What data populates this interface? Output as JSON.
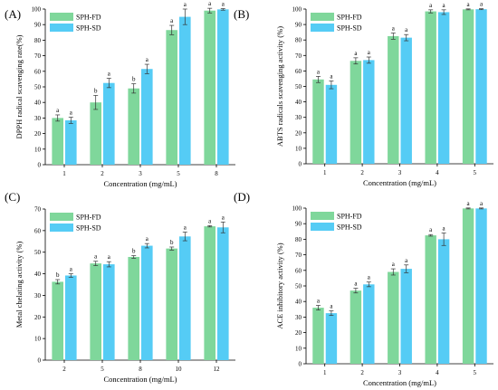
{
  "chart_data": [
    {
      "type": "bar",
      "panel_label": "(A)",
      "xlabel": "Concentration (mg/mL)",
      "ylabel": "DPPH radical scavenging rate(%)",
      "categories": [
        "1",
        "2",
        "3",
        "5",
        "8"
      ],
      "ylim": [
        0,
        100
      ],
      "yticks": [
        0,
        10,
        20,
        30,
        40,
        50,
        60,
        70,
        80,
        90,
        100
      ],
      "legend_position": "top-left",
      "series": [
        {
          "name": "SPH-FD",
          "color": "#7fd79b",
          "values": [
            30,
            40,
            49,
            86.5,
            99
          ],
          "errors": [
            2,
            4.5,
            3,
            3,
            1.5
          ],
          "labels": [
            "a",
            "b",
            "b",
            "a",
            "a"
          ]
        },
        {
          "name": "SPH-SD",
          "color": "#55ccf5",
          "values": [
            28.5,
            52.5,
            61.5,
            95,
            99.8
          ],
          "errors": [
            2,
            3,
            3,
            5,
            0.5
          ],
          "labels": [
            "a",
            "a",
            "a",
            "a",
            "a"
          ]
        }
      ]
    },
    {
      "type": "bar",
      "panel_label": "(B)",
      "xlabel": "Concentration (mg/mL)",
      "ylabel": "ABTS radicals scavenging activity (%)",
      "categories": [
        "1",
        "2",
        "3",
        "4",
        "5"
      ],
      "ylim": [
        0,
        100
      ],
      "yticks": [
        0,
        10,
        20,
        30,
        40,
        50,
        60,
        70,
        80,
        90,
        100
      ],
      "legend_position": "top-left",
      "series": [
        {
          "name": "SPH-FD",
          "color": "#7fd79b",
          "values": [
            54.5,
            66.5,
            82.5,
            98.5,
            99.8
          ],
          "errors": [
            2,
            2,
            2,
            1,
            0.3
          ],
          "labels": [
            "a",
            "a",
            "a",
            "a",
            "a"
          ]
        },
        {
          "name": "SPH-SD",
          "color": "#55ccf5",
          "values": [
            51,
            67,
            81.5,
            98,
            99.9
          ],
          "errors": [
            2.5,
            2,
            2,
            1.5,
            0.3
          ],
          "labels": [
            "a",
            "a",
            "a",
            "a",
            "a"
          ]
        }
      ]
    },
    {
      "type": "bar",
      "panel_label": "(C)",
      "xlabel": "Concentration (mg/mL)",
      "ylabel": "Metal chelating activity (%)",
      "categories": [
        "2",
        "5",
        "8",
        "10",
        "12"
      ],
      "ylim": [
        0,
        70
      ],
      "yticks": [
        0,
        10,
        20,
        30,
        40,
        50,
        60,
        70
      ],
      "legend_position": "top-left",
      "series": [
        {
          "name": "SPH-FD",
          "color": "#7fd79b",
          "values": [
            36.3,
            44.8,
            47.8,
            51.7,
            62
          ],
          "errors": [
            1,
            1,
            0.6,
            0.7,
            0.3
          ],
          "labels": [
            "b",
            "a",
            "b",
            "b",
            "a"
          ]
        },
        {
          "name": "SPH-SD",
          "color": "#55ccf5",
          "values": [
            39.2,
            44.4,
            53,
            57.3,
            61.5
          ],
          "errors": [
            0.8,
            1.2,
            1,
            2,
            2.5
          ],
          "labels": [
            "a",
            "a",
            "a",
            "a",
            "a"
          ]
        }
      ]
    },
    {
      "type": "bar",
      "panel_label": "(D)",
      "xlabel": "Concentration (mg/mL)",
      "ylabel": "ACE inhibitory activity (%)",
      "categories": [
        "1",
        "2",
        "3",
        "4",
        "5"
      ],
      "ylim": [
        0,
        100
      ],
      "yticks": [
        0,
        10,
        20,
        30,
        40,
        50,
        60,
        70,
        80,
        90,
        100
      ],
      "legend_position": "top-left",
      "series": [
        {
          "name": "SPH-FD",
          "color": "#7fd79b",
          "values": [
            36,
            47,
            59,
            82.5,
            99.8
          ],
          "errors": [
            1.5,
            1.5,
            2,
            0.5,
            0.3
          ],
          "labels": [
            "a",
            "a",
            "a",
            "a",
            "a"
          ]
        },
        {
          "name": "SPH-SD",
          "color": "#55ccf5",
          "values": [
            32.5,
            51,
            61,
            80,
            99.8
          ],
          "errors": [
            1.5,
            1.5,
            2.5,
            4,
            0.3
          ],
          "labels": [
            "a",
            "a",
            "a",
            "a",
            "a"
          ]
        }
      ]
    }
  ]
}
